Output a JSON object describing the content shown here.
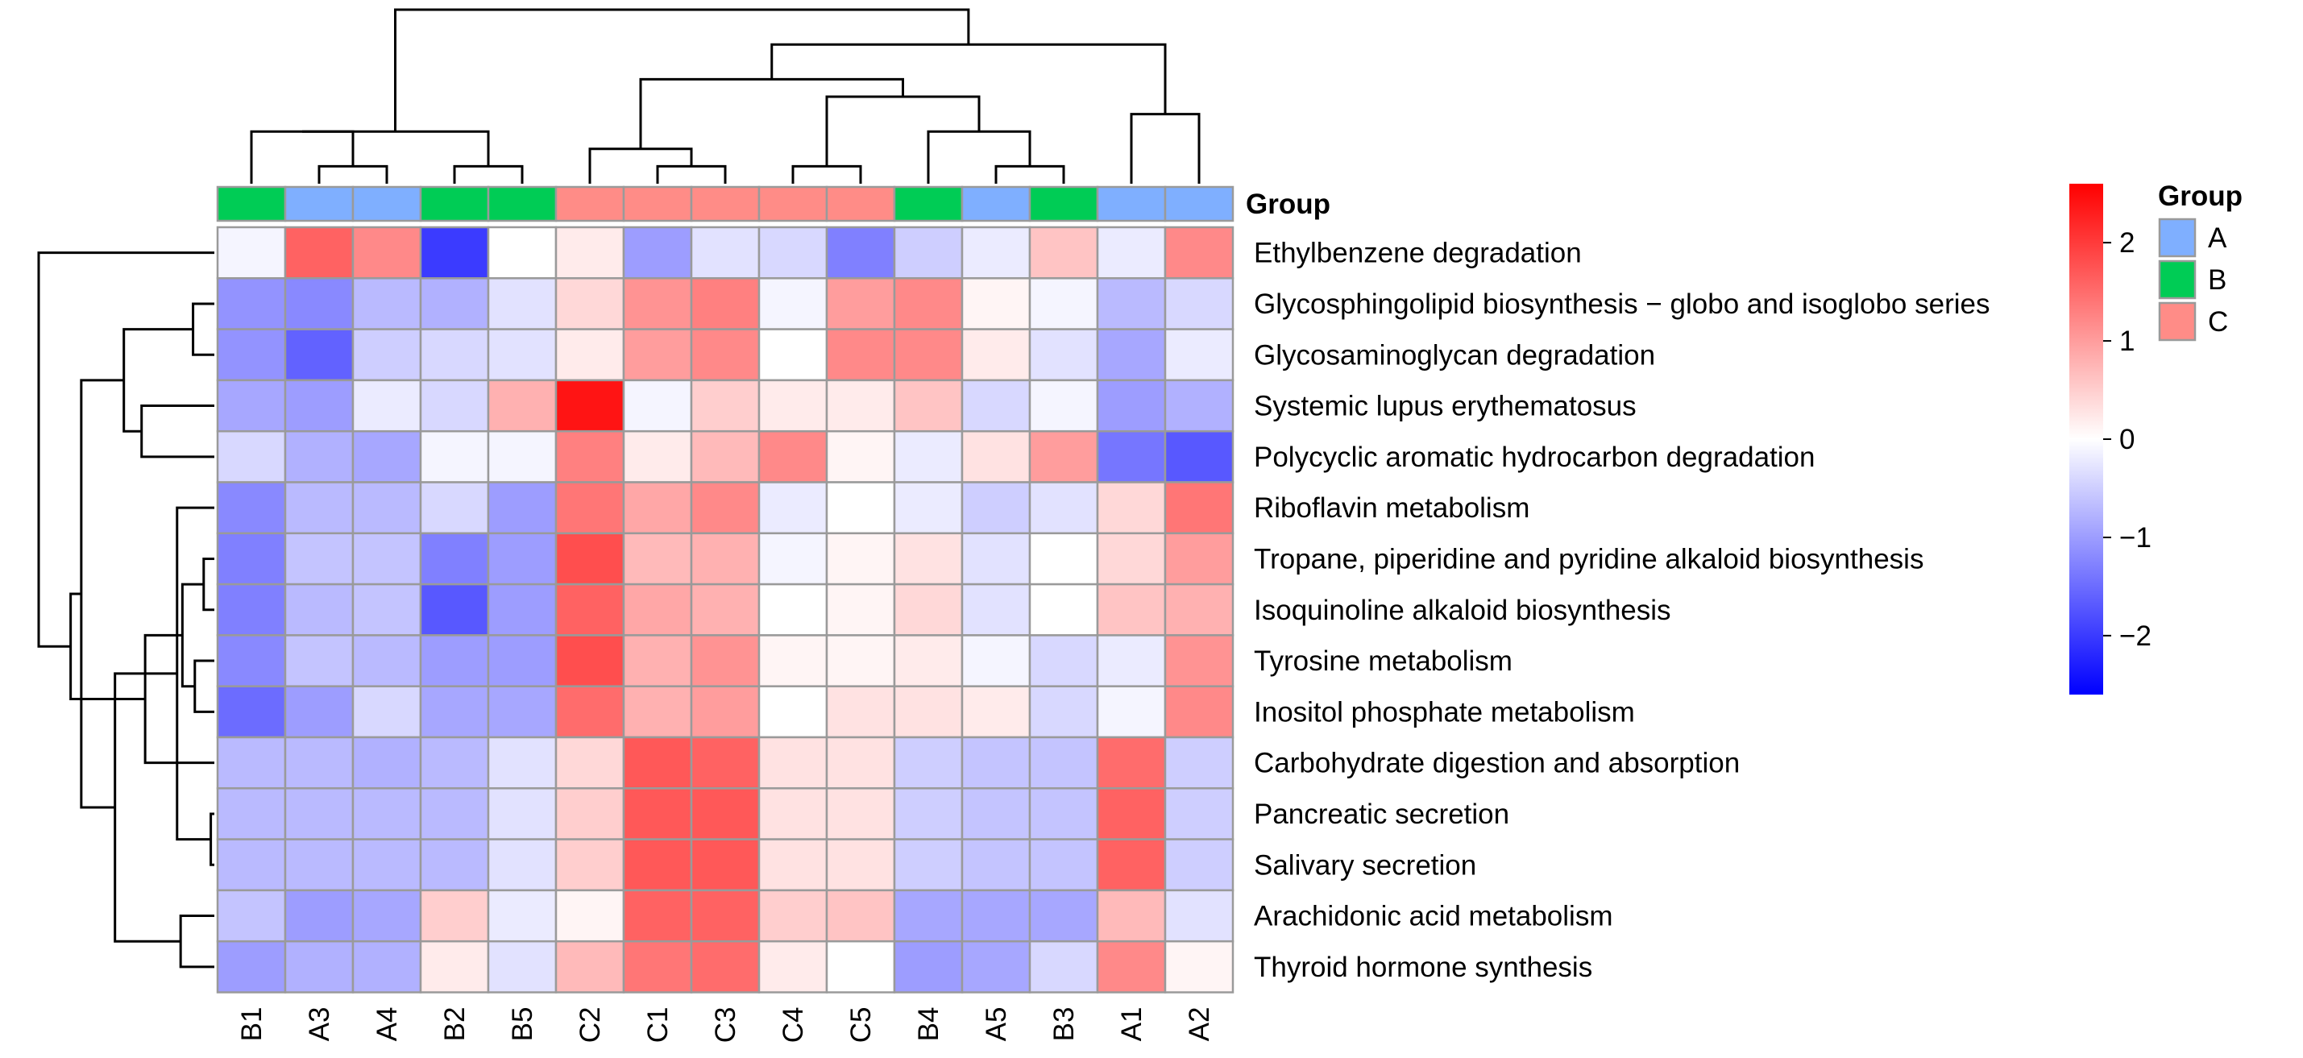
{
  "chart_data": {
    "type": "heatmap",
    "columns": [
      "B1",
      "A3",
      "A4",
      "B2",
      "B5",
      "C2",
      "C1",
      "C3",
      "C4",
      "C5",
      "B4",
      "A5",
      "B3",
      "A1",
      "A2"
    ],
    "column_groups": [
      "B",
      "A",
      "A",
      "B",
      "B",
      "C",
      "C",
      "C",
      "C",
      "C",
      "B",
      "A",
      "B",
      "A",
      "A"
    ],
    "rows": [
      "Ethylbenzene degradation",
      "Glycosphingolipid biosynthesis − globo and isoglobo series",
      "Glycosaminoglycan degradation",
      "Systemic lupus erythematosus",
      "Polycyclic aromatic hydrocarbon degradation",
      "Riboflavin metabolism",
      "Tropane, piperidine and pyridine alkaloid biosynthesis",
      "Isoquinoline alkaloid biosynthesis",
      "Tyrosine metabolism",
      "Inositol phosphate metabolism",
      "Carbohydrate digestion and absorption",
      "Pancreatic secretion",
      "Salivary secretion",
      "Arachidonic acid metabolism",
      "Thyroid hormone synthesis"
    ],
    "values": [
      [
        -0.1,
        1.6,
        1.2,
        -2.0,
        0.0,
        0.2,
        -1.0,
        -0.3,
        -0.4,
        -1.3,
        -0.5,
        -0.2,
        0.6,
        -0.2,
        1.2
      ],
      [
        -1.1,
        -1.2,
        -0.7,
        -0.8,
        -0.3,
        0.4,
        1.1,
        1.3,
        -0.1,
        1.0,
        1.2,
        0.1,
        -0.1,
        -0.7,
        -0.4
      ],
      [
        -1.1,
        -1.6,
        -0.5,
        -0.4,
        -0.3,
        0.2,
        1.0,
        1.2,
        0.0,
        1.2,
        1.2,
        0.2,
        -0.3,
        -0.9,
        -0.2
      ],
      [
        -0.9,
        -1.0,
        -0.2,
        -0.4,
        0.8,
        2.4,
        -0.1,
        0.5,
        0.2,
        0.2,
        0.6,
        -0.4,
        -0.1,
        -1.0,
        -0.8
      ],
      [
        -0.4,
        -0.8,
        -0.9,
        -0.1,
        -0.1,
        1.3,
        0.2,
        0.7,
        1.2,
        0.1,
        -0.2,
        0.3,
        1.0,
        -1.4,
        -1.7
      ],
      [
        -1.2,
        -0.7,
        -0.7,
        -0.4,
        -1.0,
        1.4,
        0.9,
        1.2,
        -0.2,
        0.0,
        -0.2,
        -0.5,
        -0.3,
        0.4,
        1.4
      ],
      [
        -1.3,
        -0.6,
        -0.6,
        -1.3,
        -1.0,
        1.8,
        0.7,
        0.8,
        -0.1,
        0.1,
        0.3,
        -0.3,
        0.0,
        0.4,
        1.0
      ],
      [
        -1.3,
        -0.7,
        -0.6,
        -1.7,
        -1.0,
        1.6,
        0.9,
        0.8,
        0.0,
        0.1,
        0.4,
        -0.3,
        0.0,
        0.6,
        0.8
      ],
      [
        -1.2,
        -0.6,
        -0.7,
        -1.0,
        -1.0,
        1.8,
        0.8,
        1.1,
        0.1,
        0.1,
        0.2,
        -0.1,
        -0.4,
        -0.2,
        1.1
      ],
      [
        -1.5,
        -1.0,
        -0.4,
        -0.9,
        -0.9,
        1.5,
        0.8,
        1.0,
        0.0,
        0.3,
        0.3,
        0.2,
        -0.4,
        -0.1,
        1.2
      ],
      [
        -0.7,
        -0.7,
        -0.8,
        -0.7,
        -0.3,
        0.4,
        1.7,
        1.6,
        0.3,
        0.3,
        -0.5,
        -0.6,
        -0.6,
        1.5,
        -0.5
      ],
      [
        -0.7,
        -0.7,
        -0.7,
        -0.7,
        -0.3,
        0.5,
        1.7,
        1.7,
        0.3,
        0.3,
        -0.5,
        -0.6,
        -0.6,
        1.6,
        -0.5
      ],
      [
        -0.7,
        -0.7,
        -0.7,
        -0.7,
        -0.3,
        0.5,
        1.7,
        1.7,
        0.3,
        0.3,
        -0.5,
        -0.6,
        -0.6,
        1.6,
        -0.5
      ],
      [
        -0.6,
        -1.0,
        -0.9,
        0.5,
        -0.2,
        0.1,
        1.6,
        1.6,
        0.5,
        0.6,
        -0.9,
        -0.9,
        -0.9,
        0.7,
        -0.3
      ],
      [
        -1.0,
        -0.8,
        -0.8,
        0.2,
        -0.3,
        0.7,
        1.4,
        1.5,
        0.2,
        0.0,
        -1.0,
        -0.9,
        -0.4,
        1.2,
        0.1
      ]
    ],
    "color_scale": {
      "min": -2.6,
      "mid": 0,
      "max": 2.6,
      "low_color": "#0000FF",
      "mid_color": "#FFFFFF",
      "high_color": "#FF0000",
      "ticks": [
        2,
        1,
        0,
        -1,
        -2
      ],
      "tick_labels": [
        "2",
        "1",
        "0",
        "−1",
        "−2"
      ]
    },
    "annotation": {
      "label": "Group",
      "legend_title": "Group",
      "levels": [
        {
          "name": "A",
          "color": "#7FAFFF"
        },
        {
          "name": "B",
          "color": "#00CC55"
        },
        {
          "name": "C",
          "color": "#FF8C87"
        }
      ]
    },
    "col_dendrogram": {
      "leaves": 15,
      "merges": [
        [
          1,
          2,
          1
        ],
        [
          0,
          -1,
          3
        ],
        [
          3,
          4,
          1
        ],
        [
          -2,
          -3,
          3
        ],
        [
          6,
          7,
          1
        ],
        [
          -5,
          5,
          2
        ],
        [
          8,
          9,
          1
        ],
        [
          11,
          12,
          1
        ],
        [
          10,
          -8,
          3
        ],
        [
          13,
          14,
          4
        ],
        [
          -7,
          -9,
          5
        ],
        [
          -6,
          -11,
          6
        ],
        [
          -10,
          -12,
          8
        ],
        [
          -4,
          -13,
          10
        ]
      ]
    },
    "row_dendrogram": {
      "leaves": 15,
      "merges": [
        [
          11,
          12,
          0.2
        ],
        [
          1,
          2,
          1.2
        ],
        [
          6,
          7,
          0.6
        ],
        [
          8,
          9,
          1.1
        ],
        [
          13,
          14,
          1.9
        ],
        [
          -3,
          -4,
          1.8
        ],
        [
          5,
          -1,
          2.1
        ],
        [
          10,
          -6,
          3.9
        ],
        [
          3,
          4,
          4.1
        ],
        [
          -2,
          -9,
          5.1
        ],
        [
          -7,
          -5,
          5.6
        ],
        [
          -10,
          -11,
          7.5
        ],
        [
          -12,
          -8,
          8.1
        ],
        [
          0,
          -13,
          9.9
        ]
      ]
    }
  }
}
